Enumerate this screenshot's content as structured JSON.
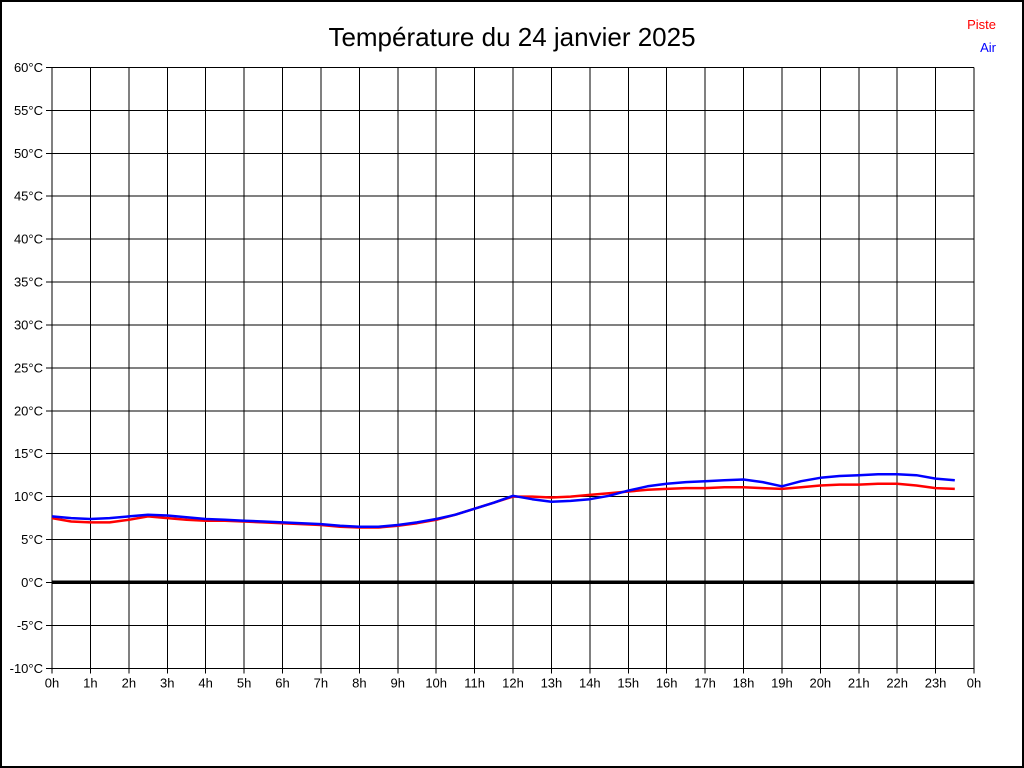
{
  "title": "Température du 24 janvier 2025",
  "legend": {
    "piste": {
      "label": "Piste",
      "color": "#ff0000"
    },
    "air": {
      "label": "Air",
      "color": "#0000ff"
    }
  },
  "chart_data": {
    "type": "line",
    "title": "Température du 24 janvier 2025",
    "xlabel": "",
    "ylabel": "",
    "x_axis": {
      "unit": "h",
      "min": 0,
      "max": 24,
      "tick_interval": 1,
      "tick_labels": [
        "0h",
        "1h",
        "2h",
        "3h",
        "4h",
        "5h",
        "6h",
        "7h",
        "8h",
        "9h",
        "10h",
        "11h",
        "12h",
        "13h",
        "14h",
        "15h",
        "16h",
        "17h",
        "18h",
        "19h",
        "20h",
        "21h",
        "22h",
        "23h",
        "0h"
      ]
    },
    "y_axis": {
      "unit": "°C",
      "min": -10,
      "max": 60,
      "tick_interval": 5,
      "tick_labels": [
        "60°C",
        "55°C",
        "50°C",
        "45°C",
        "40°C",
        "35°C",
        "30°C",
        "25°C",
        "20°C",
        "15°C",
        "10°C",
        "5°C",
        "0°C",
        "-5°C",
        "-10°C"
      ]
    },
    "grid": true,
    "zero_line_bold": true,
    "legend_position": "top-right",
    "series": [
      {
        "name": "Piste",
        "color": "#ff0000",
        "x_start_h": 0,
        "x_step_h": 0.5,
        "values": [
          7.5,
          7.1,
          7.0,
          7.0,
          7.3,
          7.7,
          7.5,
          7.3,
          7.2,
          7.2,
          7.1,
          7.0,
          6.9,
          6.8,
          6.7,
          6.5,
          6.4,
          6.4,
          6.6,
          6.9,
          7.3,
          7.9,
          8.6,
          9.3,
          10.0,
          10.0,
          9.9,
          10.0,
          10.2,
          10.4,
          10.6,
          10.8,
          10.9,
          11.0,
          11.0,
          11.1,
          11.1,
          11.0,
          10.9,
          11.1,
          11.3,
          11.4,
          11.4,
          11.5,
          11.5,
          11.3,
          11.0,
          10.9
        ]
      },
      {
        "name": "Air",
        "color": "#0000ff",
        "x_start_h": 0,
        "x_step_h": 0.5,
        "values": [
          7.7,
          7.5,
          7.4,
          7.5,
          7.7,
          7.9,
          7.8,
          7.6,
          7.4,
          7.3,
          7.2,
          7.1,
          7.0,
          6.9,
          6.8,
          6.6,
          6.5,
          6.5,
          6.7,
          7.0,
          7.4,
          7.9,
          8.6,
          9.3,
          10.1,
          9.7,
          9.4,
          9.5,
          9.7,
          10.1,
          10.7,
          11.2,
          11.5,
          11.7,
          11.8,
          11.9,
          12.0,
          11.7,
          11.2,
          11.8,
          12.2,
          12.4,
          12.5,
          12.6,
          12.6,
          12.5,
          12.1,
          11.9
        ]
      }
    ]
  }
}
